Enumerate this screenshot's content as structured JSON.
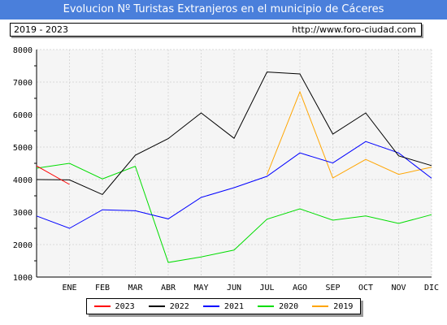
{
  "header": {
    "title": "Evolucion Nº Turistas Extranjeros en el municipio de Cáceres",
    "period": "2019 - 2023",
    "url": "http://www.foro-ciudad.com"
  },
  "colors": {
    "title_bar": "#4a7fdb",
    "plot_background": "#f5f5f5",
    "grid": "#d9d9d9"
  },
  "chart_data": {
    "type": "line",
    "title": "Evolucion Nº Turistas Extranjeros en el municipio de Cáceres",
    "xlabel": "",
    "ylabel": "",
    "categories": [
      "ENE",
      "FEB",
      "MAR",
      "ABR",
      "MAY",
      "JUN",
      "JUL",
      "AGO",
      "SEP",
      "OCT",
      "NOV",
      "DIC"
    ],
    "x_positions": [
      1,
      2,
      3,
      4,
      5,
      6,
      7,
      8,
      9,
      10,
      11,
      12
    ],
    "xlim": [
      0,
      12
    ],
    "ylim": [
      1000,
      8000
    ],
    "yticks": [
      1000,
      2000,
      3000,
      4000,
      5000,
      6000,
      7000,
      8000
    ],
    "grid": true,
    "legend_position": "bottom",
    "series": [
      {
        "name": "2023",
        "color": "#ff0000",
        "x": [
          0,
          1
        ],
        "values": [
          4420,
          3850
        ]
      },
      {
        "name": "2022",
        "color": "#000000",
        "x": [
          0,
          1,
          2,
          3,
          4,
          5,
          6,
          7,
          8,
          9,
          10,
          11,
          12
        ],
        "values": [
          4000,
          3990,
          3540,
          4750,
          5260,
          6050,
          5270,
          7310,
          7250,
          5400,
          6050,
          4730,
          4430
        ]
      },
      {
        "name": "2021",
        "color": "#0000ff",
        "x": [
          0,
          1,
          2,
          3,
          4,
          5,
          6,
          7,
          8,
          9,
          10,
          11,
          12
        ],
        "values": [
          2880,
          2500,
          3070,
          3040,
          2790,
          3450,
          3750,
          4100,
          4820,
          4510,
          5170,
          4820,
          4040
        ]
      },
      {
        "name": "2020",
        "color": "#00dd00",
        "x": [
          0,
          1,
          2,
          3,
          4,
          5,
          6,
          7,
          8,
          9,
          10,
          11,
          12
        ],
        "values": [
          4350,
          4500,
          4020,
          4410,
          1450,
          1620,
          1830,
          2780,
          3100,
          2750,
          2880,
          2650,
          2920
        ]
      },
      {
        "name": "2019",
        "color": "#ffa500",
        "x": [
          7,
          8,
          9,
          10,
          11,
          12
        ],
        "values": [
          4150,
          6700,
          4050,
          4620,
          4160,
          4380
        ]
      }
    ]
  }
}
